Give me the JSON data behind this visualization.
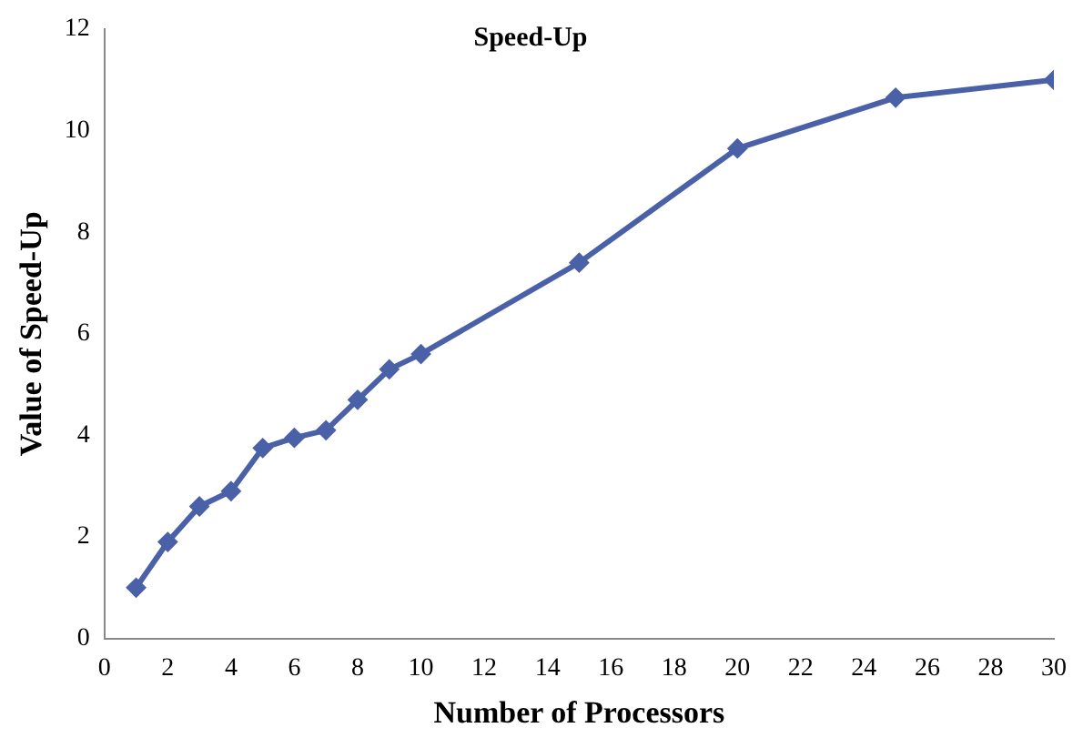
{
  "chart_data": {
    "type": "line",
    "title": "Speed-Up",
    "xlabel": "Number of Processors",
    "ylabel": "Value of Speed-Up",
    "x": [
      1,
      2,
      3,
      4,
      5,
      6,
      7,
      8,
      9,
      10,
      15,
      20,
      25,
      30
    ],
    "series": [
      {
        "color": "#4a61a8",
        "values": [
          1.0,
          1.9,
          2.6,
          2.9,
          3.75,
          3.95,
          4.1,
          4.7,
          5.3,
          5.6,
          7.4,
          9.65,
          10.65,
          11.0
        ]
      }
    ],
    "xlim": [
      0,
      30
    ],
    "xticks": [
      0,
      2,
      4,
      6,
      8,
      10,
      12,
      14,
      16,
      18,
      20,
      22,
      24,
      26,
      28,
      30
    ],
    "ylim": [
      0,
      12
    ],
    "yticks": [
      0,
      2,
      4,
      6,
      8,
      10,
      12
    ],
    "grid": false,
    "legend": false,
    "marker": "diamond",
    "line_style": "solid"
  }
}
